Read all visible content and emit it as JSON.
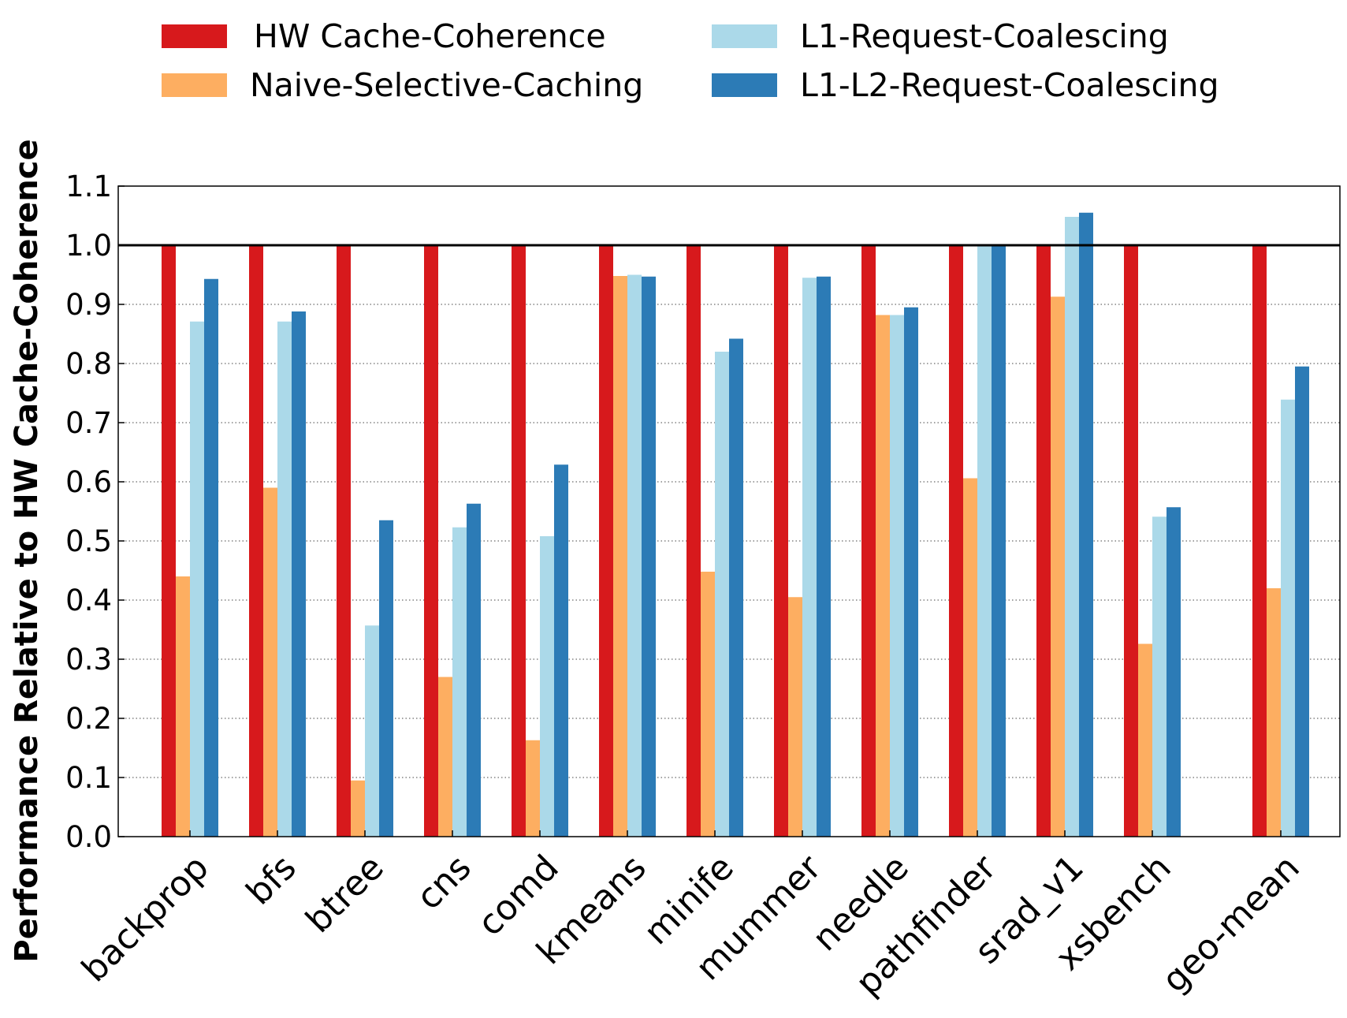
{
  "chart_data": {
    "type": "bar",
    "title": "",
    "xlabel": "",
    "ylabel": "Performance Relative to HW Cache-Coherence",
    "ylim": [
      0.0,
      1.1
    ],
    "yticks": [
      "0.0",
      "0.1",
      "0.2",
      "0.3",
      "0.4",
      "0.5",
      "0.6",
      "0.7",
      "0.8",
      "0.9",
      "1.0",
      "1.1"
    ],
    "grid": "horizontal-dotted",
    "legend_position": "top",
    "reference_line": 1.0,
    "categories": [
      "backprop",
      "bfs",
      "btree",
      "cns",
      "comd",
      "kmeans",
      "minife",
      "mummer",
      "needle",
      "pathfinder",
      "srad_v1",
      "xsbench",
      "geo-mean"
    ],
    "series": [
      {
        "name": "HW Cache-Coherence",
        "color": "#d7191c",
        "values": [
          1.0,
          1.0,
          1.0,
          1.0,
          1.0,
          1.0,
          1.0,
          1.0,
          1.0,
          1.0,
          1.0,
          1.0,
          1.0
        ]
      },
      {
        "name": "Naive-Selective-Caching",
        "color": "#fdae61",
        "values": [
          0.44,
          0.59,
          0.095,
          0.27,
          0.163,
          0.948,
          0.448,
          0.405,
          0.882,
          0.606,
          0.913,
          0.326,
          0.42
        ]
      },
      {
        "name": "L1-Request-Coalescing",
        "color": "#abd9e9",
        "values": [
          0.871,
          0.871,
          0.357,
          0.523,
          0.508,
          0.95,
          0.82,
          0.945,
          0.882,
          1.0,
          1.048,
          0.541,
          0.739
        ]
      },
      {
        "name": "L1-L2-Request-Coalescing",
        "color": "#2c7bb6",
        "values": [
          0.943,
          0.888,
          0.535,
          0.563,
          0.629,
          0.947,
          0.842,
          0.947,
          0.895,
          1.0,
          1.055,
          0.557,
          0.795
        ]
      }
    ]
  }
}
